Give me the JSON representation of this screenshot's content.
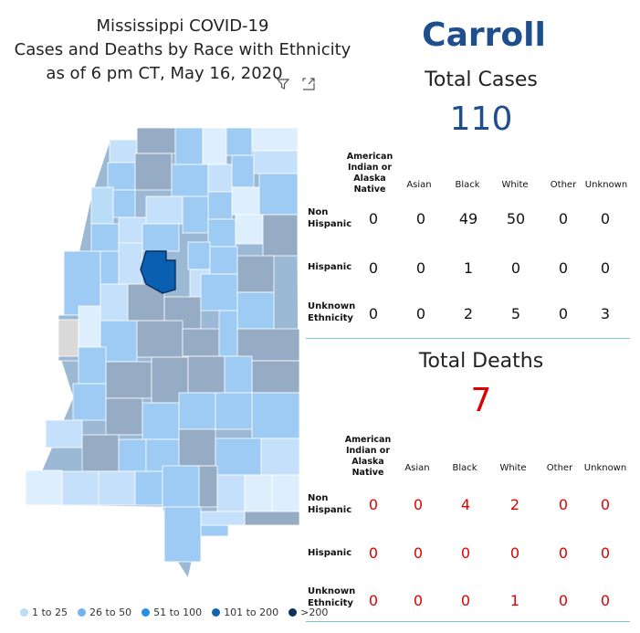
{
  "title": {
    "line1": "Mississippi COVID-19",
    "line2": "Cases and Deaths by Race with Ethnicity",
    "line3": "as of 6 pm CT, May 16, 2020"
  },
  "county": "Carroll",
  "cases": {
    "label": "Total Cases",
    "total": "110"
  },
  "deaths": {
    "label": "Total Deaths",
    "total": "7"
  },
  "columns": [
    "American Indian or Alaska Native",
    "Asian",
    "Black",
    "White",
    "Other",
    "Unknown"
  ],
  "column_lines": {
    "american_indian": [
      "American",
      "Indian or",
      "Alaska Native"
    ]
  },
  "rows": {
    "non_hispanic": [
      "Non",
      "Hispanic"
    ],
    "hispanic": "Hispanic",
    "unknown": [
      "Unknown",
      "Ethnicity"
    ]
  },
  "cases_table": {
    "non_hispanic": [
      "0",
      "0",
      "49",
      "50",
      "0",
      "0"
    ],
    "hispanic": [
      "0",
      "0",
      "1",
      "0",
      "0",
      "0"
    ],
    "unknown": [
      "0",
      "0",
      "2",
      "5",
      "0",
      "3"
    ]
  },
  "deaths_table": {
    "non_hispanic": [
      "0",
      "0",
      "4",
      "2",
      "0",
      "0"
    ],
    "hispanic": [
      "0",
      "0",
      "0",
      "0",
      "0",
      "0"
    ],
    "unknown": [
      "0",
      "0",
      "0",
      "1",
      "0",
      "0"
    ]
  },
  "legend": [
    {
      "label": "1 to 25",
      "color": "#b9dcf7"
    },
    {
      "label": "26 to 50",
      "color": "#6fb6f0"
    },
    {
      "label": "51 to 100",
      "color": "#2a8cea"
    },
    {
      "label": "101 to 200",
      "color": "#0f64b4"
    },
    {
      "label": ">200",
      "color": "#0b2f5e"
    }
  ],
  "map_colors": {
    "light": "#c5e0fa",
    "mid": "#9dcbf3",
    "grey_blue": "#95acc4",
    "pale": "#ddeefc",
    "selected": "#0b5fb0",
    "no_data": "#d9d9d9"
  },
  "icons": [
    "filter-icon",
    "focus-mode-icon"
  ]
}
